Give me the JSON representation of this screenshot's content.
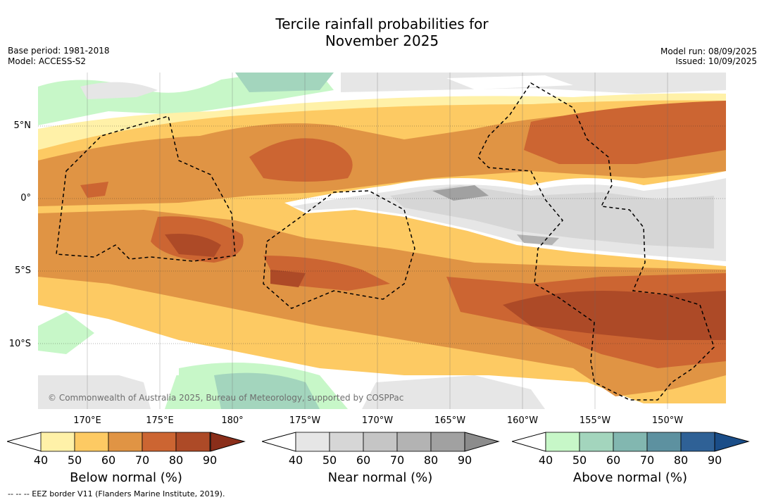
{
  "title_line1": "Tercile rainfall probabilities for",
  "title_line2": "November 2025",
  "base_period": "Base period: 1981-2018",
  "model": "Model: ACCESS-S2",
  "model_run": "Model run: 08/09/2025",
  "issued": "Issued: 10/09/2025",
  "copyright": "© Commonwealth of Australia 2025, Bureau of Meteorology, supported by COSPPac",
  "footer": "-- -- -- EEZ border V11 (Flanders Marine Institute, 2019).",
  "lat_labels": [
    "5°N",
    "0°",
    "5°S",
    "10°S"
  ],
  "lon_labels": [
    "170°E",
    "175°E",
    "180°",
    "175°W",
    "170°W",
    "165°W",
    "160°W",
    "155°W",
    "150°W"
  ],
  "colorbars": [
    {
      "title": "Below normal (%)",
      "ticks": [
        "40",
        "50",
        "60",
        "70",
        "80",
        "90"
      ],
      "colors": [
        "#fff1a8",
        "#fdca63",
        "#e09444",
        "#cc6532",
        "#ad4a27",
        "#8a2e1a"
      ]
    },
    {
      "title": "Near normal (%)",
      "ticks": [
        "40",
        "50",
        "60",
        "70",
        "80",
        "90"
      ],
      "colors": [
        "#e6e6e6",
        "#d6d6d6",
        "#c5c5c5",
        "#b3b3b3",
        "#a1a1a1",
        "#8c8c8c"
      ]
    },
    {
      "title": "Above normal (%)",
      "ticks": [
        "40",
        "50",
        "60",
        "70",
        "80",
        "90"
      ],
      "colors": [
        "#c7f7c8",
        "#a3d5bd",
        "#82b7b0",
        "#5d91a0",
        "#2f6196",
        "#1a4d88"
      ]
    }
  ]
}
